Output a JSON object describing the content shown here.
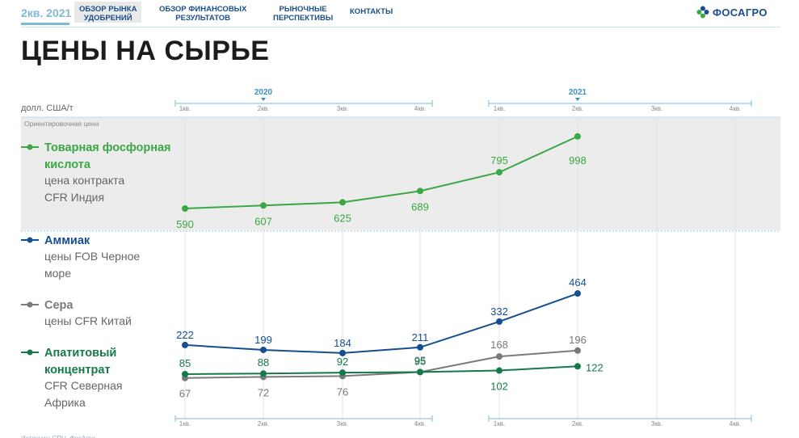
{
  "header": {
    "period": "2кв. 2021",
    "nav": [
      {
        "label_line1": "ОБЗОР РЫНКА",
        "label_line2": "УДОБРЕНИЙ",
        "active": true
      },
      {
        "label_line1": "ОБЗОР ФИНАНСОВЫХ",
        "label_line2": "РЕЗУЛЬТАТОВ",
        "active": false
      },
      {
        "label_line1": "РЫНОЧНЫЕ",
        "label_line2": "ПЕРСПЕКТИВЫ",
        "active": false
      },
      {
        "label_line1": "КОНТАКТЫ",
        "label_line2": "",
        "active": false
      }
    ],
    "logo_text": "ФОСАГРО",
    "logo_icon": "phosagro-flower-icon"
  },
  "page_title": "ЦЕНЫ НА СЫРЬЕ",
  "colors": {
    "green": "#3aa845",
    "blue": "#154f91",
    "gray": "#7a7a7a",
    "darkgreen": "#16794a",
    "nav_blue": "#1a4f8a",
    "light_blue": "#7fb9d6",
    "band": "#ececec"
  },
  "chart_data": {
    "type": "line",
    "unit_label": "долл. США/т",
    "band_note": "Ориентировочная цена",
    "years": [
      {
        "label": "2020",
        "quarters": [
          "1кв.",
          "2кв.",
          "3кв.",
          "4кв."
        ]
      },
      {
        "label": "2021",
        "quarters": [
          "1кв.",
          "2кв.",
          "3кв.",
          "4кв."
        ]
      }
    ],
    "x": [
      "1кв. 2020",
      "2кв. 2020",
      "3кв. 2020",
      "4кв. 2020",
      "1кв. 2021",
      "2кв. 2021"
    ],
    "series": [
      {
        "name": "Товарная фосфорная кислота",
        "desc": [
          "цена контракта",
          "CFR Индия"
        ],
        "name_lines": [
          "Товарная фосфорная",
          "кислота"
        ],
        "color_key": "green",
        "values": [
          590,
          607,
          625,
          689,
          795,
          998
        ]
      },
      {
        "name": "Аммиак",
        "desc": [
          "цены FOB Черное",
          "море"
        ],
        "name_lines": [
          "Аммиак"
        ],
        "color_key": "blue",
        "values": [
          222,
          199,
          184,
          211,
          332,
          464
        ]
      },
      {
        "name": "Сера",
        "desc": [
          "цены CFR Китай"
        ],
        "name_lines": [
          "Сера"
        ],
        "color_key": "gray",
        "values": [
          67,
          72,
          76,
          95,
          168,
          196
        ]
      },
      {
        "name": "Апатитовый концентрат",
        "desc": [
          "CFR Северная",
          "Африка"
        ],
        "name_lines": [
          "Апатитовый",
          "концентрат"
        ],
        "color_key": "darkgreen",
        "values": [
          85,
          88,
          92,
          95,
          102,
          122
        ]
      }
    ]
  },
  "footer_source": "Источник: CRU, ФосАгро"
}
